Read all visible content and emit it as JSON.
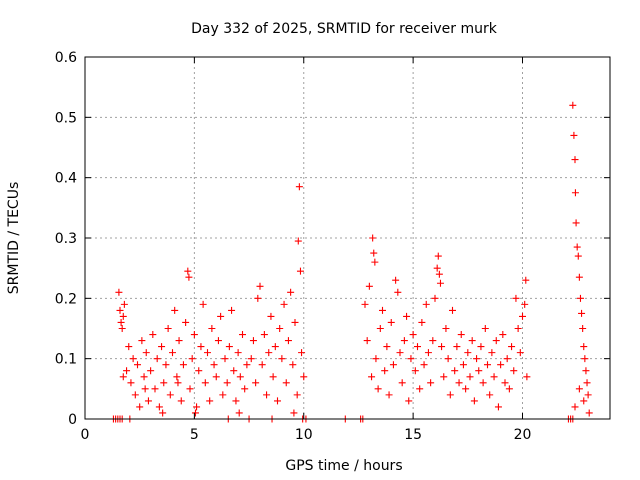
{
  "chart_data": {
    "type": "scatter",
    "title": "Day 332 of 2025, SRMTID for receiver murk",
    "xlabel": "GPS time / hours",
    "ylabel": "SRMTID / TECUs",
    "xlim": [
      0,
      24
    ],
    "ylim": [
      0,
      0.6
    ],
    "x_ticks": [
      "0",
      "5",
      "10",
      "15",
      "20"
    ],
    "y_ticks": [
      "0",
      "0.1",
      "0.2",
      "0.3",
      "0.4",
      "0.5",
      "0.6"
    ],
    "grid": true,
    "legend": "none",
    "marker": "+",
    "color": "#ff0000",
    "series": [
      {
        "values": [
          [
            1.55,
            0.21
          ],
          [
            1.6,
            0.18
          ],
          [
            1.65,
            0.16
          ],
          [
            1.7,
            0.15
          ],
          [
            1.75,
            0.17
          ],
          [
            1.8,
            0.19
          ],
          [
            1.9,
            0.08
          ],
          [
            2.0,
            0.12
          ],
          [
            2.1,
            0.06
          ],
          [
            2.2,
            0.1
          ],
          [
            2.3,
            0.04
          ],
          [
            2.4,
            0.09
          ],
          [
            2.5,
            0.02
          ],
          [
            2.6,
            0.13
          ],
          [
            2.7,
            0.07
          ],
          [
            2.8,
            0.11
          ],
          [
            2.9,
            0.03
          ],
          [
            3.0,
            0.08
          ],
          [
            3.1,
            0.14
          ],
          [
            3.2,
            0.05
          ],
          [
            3.3,
            0.1
          ],
          [
            3.4,
            0.02
          ],
          [
            3.5,
            0.12
          ],
          [
            3.6,
            0.06
          ],
          [
            3.7,
            0.09
          ],
          [
            3.8,
            0.15
          ],
          [
            3.9,
            0.04
          ],
          [
            4.0,
            0.11
          ],
          [
            4.1,
            0.18
          ],
          [
            4.2,
            0.07
          ],
          [
            4.3,
            0.13
          ],
          [
            4.4,
            0.03
          ],
          [
            4.5,
            0.09
          ],
          [
            4.6,
            0.16
          ],
          [
            4.7,
            0.245
          ],
          [
            4.75,
            0.235
          ],
          [
            4.8,
            0.05
          ],
          [
            4.9,
            0.1
          ],
          [
            5.0,
            0.14
          ],
          [
            5.1,
            0.02
          ],
          [
            5.2,
            0.08
          ],
          [
            5.3,
            0.12
          ],
          [
            5.4,
            0.19
          ],
          [
            5.5,
            0.06
          ],
          [
            5.6,
            0.11
          ],
          [
            5.7,
            0.03
          ],
          [
            5.8,
            0.15
          ],
          [
            5.9,
            0.09
          ],
          [
            6.0,
            0.07
          ],
          [
            6.1,
            0.13
          ],
          [
            6.2,
            0.17
          ],
          [
            6.3,
            0.04
          ],
          [
            6.4,
            0.1
          ],
          [
            6.5,
            0.06
          ],
          [
            6.6,
            0.12
          ],
          [
            6.7,
            0.18
          ],
          [
            6.8,
            0.08
          ],
          [
            6.9,
            0.03
          ],
          [
            7.0,
            0.11
          ],
          [
            7.1,
            0.07
          ],
          [
            7.2,
            0.14
          ],
          [
            7.3,
            0.05
          ],
          [
            7.4,
            0.09
          ],
          [
            7.6,
            0.1
          ],
          [
            7.7,
            0.13
          ],
          [
            7.8,
            0.06
          ],
          [
            7.9,
            0.2
          ],
          [
            8.0,
            0.22
          ],
          [
            8.1,
            0.09
          ],
          [
            8.2,
            0.14
          ],
          [
            8.3,
            0.04
          ],
          [
            8.4,
            0.11
          ],
          [
            8.5,
            0.17
          ],
          [
            8.6,
            0.07
          ],
          [
            8.7,
            0.12
          ],
          [
            8.8,
            0.03
          ],
          [
            8.9,
            0.15
          ],
          [
            9.0,
            0.1
          ],
          [
            9.1,
            0.19
          ],
          [
            9.2,
            0.06
          ],
          [
            9.3,
            0.13
          ],
          [
            9.4,
            0.21
          ],
          [
            9.5,
            0.09
          ],
          [
            9.6,
            0.16
          ],
          [
            9.7,
            0.04
          ],
          [
            9.75,
            0.295
          ],
          [
            9.8,
            0.385
          ],
          [
            9.85,
            0.245
          ],
          [
            9.9,
            0.11
          ],
          [
            10.0,
            0.07
          ],
          [
            2.05,
            0.0
          ],
          [
            3.55,
            0.01
          ],
          [
            5.05,
            0.01
          ],
          [
            6.55,
            0.0
          ],
          [
            7.05,
            0.01
          ],
          [
            8.55,
            0.0
          ],
          [
            9.55,
            0.01
          ],
          [
            1.75,
            0.07
          ],
          [
            2.75,
            0.05
          ],
          [
            4.25,
            0.06
          ],
          [
            12.8,
            0.19
          ],
          [
            12.9,
            0.13
          ],
          [
            13.0,
            0.22
          ],
          [
            13.1,
            0.07
          ],
          [
            13.15,
            0.3
          ],
          [
            13.2,
            0.275
          ],
          [
            13.25,
            0.26
          ],
          [
            13.3,
            0.1
          ],
          [
            13.4,
            0.05
          ],
          [
            13.5,
            0.15
          ],
          [
            13.6,
            0.18
          ],
          [
            13.7,
            0.08
          ],
          [
            13.8,
            0.12
          ],
          [
            13.9,
            0.04
          ],
          [
            14.0,
            0.16
          ],
          [
            14.1,
            0.09
          ],
          [
            14.2,
            0.23
          ],
          [
            14.3,
            0.21
          ],
          [
            14.4,
            0.11
          ],
          [
            14.5,
            0.06
          ],
          [
            14.6,
            0.13
          ],
          [
            14.7,
            0.17
          ],
          [
            14.8,
            0.03
          ],
          [
            14.9,
            0.1
          ],
          [
            15.0,
            0.14
          ],
          [
            15.1,
            0.08
          ],
          [
            15.2,
            0.12
          ],
          [
            15.3,
            0.05
          ],
          [
            15.4,
            0.16
          ],
          [
            15.5,
            0.09
          ],
          [
            15.6,
            0.19
          ],
          [
            15.7,
            0.11
          ],
          [
            15.8,
            0.06
          ],
          [
            15.9,
            0.13
          ],
          [
            16.0,
            0.2
          ],
          [
            16.1,
            0.25
          ],
          [
            16.15,
            0.27
          ],
          [
            16.2,
            0.24
          ],
          [
            16.25,
            0.225
          ],
          [
            16.3,
            0.12
          ],
          [
            16.4,
            0.07
          ],
          [
            16.5,
            0.15
          ],
          [
            16.6,
            0.1
          ],
          [
            16.7,
            0.04
          ],
          [
            16.8,
            0.18
          ],
          [
            16.9,
            0.08
          ],
          [
            17.0,
            0.12
          ],
          [
            17.1,
            0.06
          ],
          [
            17.2,
            0.14
          ],
          [
            17.3,
            0.09
          ],
          [
            17.4,
            0.05
          ],
          [
            17.5,
            0.11
          ],
          [
            17.6,
            0.07
          ],
          [
            17.7,
            0.13
          ],
          [
            17.8,
            0.03
          ],
          [
            17.9,
            0.1
          ],
          [
            18.0,
            0.08
          ],
          [
            18.1,
            0.12
          ],
          [
            18.2,
            0.06
          ],
          [
            18.3,
            0.15
          ],
          [
            18.4,
            0.09
          ],
          [
            18.5,
            0.04
          ],
          [
            18.6,
            0.11
          ],
          [
            18.7,
            0.07
          ],
          [
            18.8,
            0.13
          ],
          [
            18.9,
            0.02
          ],
          [
            19.0,
            0.09
          ],
          [
            19.1,
            0.14
          ],
          [
            19.2,
            0.06
          ],
          [
            19.3,
            0.1
          ],
          [
            19.4,
            0.05
          ],
          [
            19.5,
            0.12
          ],
          [
            19.6,
            0.08
          ],
          [
            19.7,
            0.2
          ],
          [
            19.8,
            0.15
          ],
          [
            19.9,
            0.11
          ],
          [
            20.0,
            0.17
          ],
          [
            20.1,
            0.19
          ],
          [
            20.15,
            0.23
          ],
          [
            20.2,
            0.07
          ],
          [
            22.3,
            0.52
          ],
          [
            22.35,
            0.47
          ],
          [
            22.4,
            0.43
          ],
          [
            22.42,
            0.375
          ],
          [
            22.45,
            0.325
          ],
          [
            22.5,
            0.285
          ],
          [
            22.55,
            0.27
          ],
          [
            22.6,
            0.235
          ],
          [
            22.65,
            0.2
          ],
          [
            22.7,
            0.175
          ],
          [
            22.75,
            0.15
          ],
          [
            22.8,
            0.12
          ],
          [
            22.85,
            0.1
          ],
          [
            22.9,
            0.08
          ],
          [
            22.95,
            0.06
          ],
          [
            23.0,
            0.04
          ],
          [
            22.4,
            0.02
          ],
          [
            22.6,
            0.05
          ],
          [
            22.8,
            0.03
          ],
          [
            23.05,
            0.01
          ]
        ]
      }
    ],
    "zero_points": [
      [
        1.3,
        0.0
      ],
      [
        1.4,
        0.0
      ],
      [
        1.5,
        0.0
      ],
      [
        1.6,
        0.0
      ],
      [
        1.7,
        0.0
      ],
      [
        7.5,
        0.0
      ],
      [
        9.95,
        0.0
      ],
      [
        10.1,
        0.0
      ],
      [
        11.9,
        0.0
      ],
      [
        12.6,
        0.0
      ],
      [
        12.7,
        0.0
      ],
      [
        22.1,
        0.0
      ],
      [
        22.2,
        0.0
      ],
      [
        22.3,
        0.0
      ]
    ]
  }
}
